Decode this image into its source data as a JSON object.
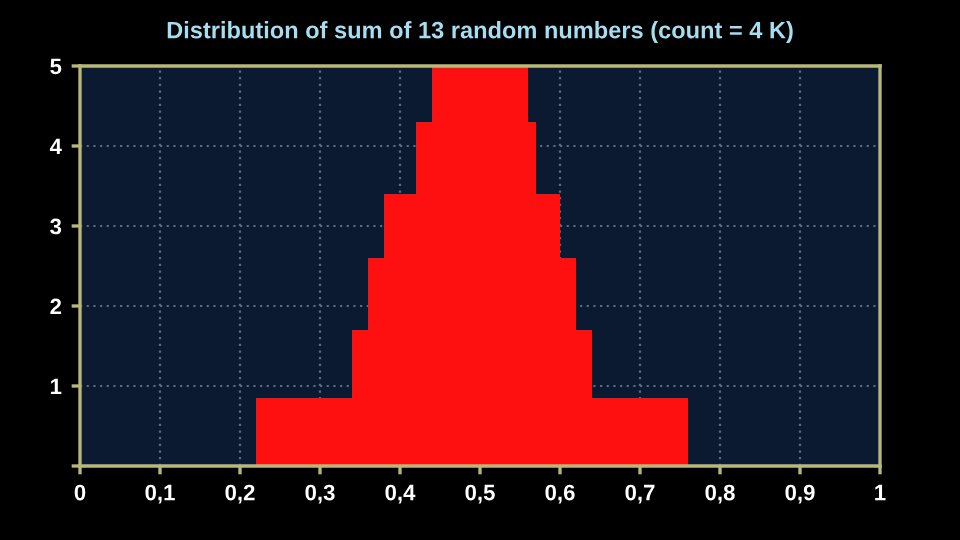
{
  "chart_data": {
    "type": "histogram",
    "title": "Distribution of sum of 13 random numbers (count = 4 K)",
    "bins": [
      0.22,
      0.23,
      0.24,
      0.25,
      0.26,
      0.27,
      0.28,
      0.29,
      0.3,
      0.31,
      0.32,
      0.33,
      0.34,
      0.35,
      0.36,
      0.37,
      0.38,
      0.39,
      0.4,
      0.41,
      0.42,
      0.43,
      0.44,
      0.45,
      0.46,
      0.47,
      0.48,
      0.49,
      0.5,
      0.51,
      0.52,
      0.53,
      0.54,
      0.55,
      0.56,
      0.57,
      0.58,
      0.59,
      0.6,
      0.61,
      0.62,
      0.63,
      0.64,
      0.65,
      0.66,
      0.67,
      0.68,
      0.69,
      0.7,
      0.71,
      0.72,
      0.73,
      0.74,
      0.75,
      0.76
    ],
    "values": [
      0.85,
      0.85,
      0.85,
      0.85,
      0.85,
      0.85,
      0.85,
      0.85,
      0.85,
      0.85,
      0.85,
      0.85,
      1.7,
      1.7,
      2.6,
      2.6,
      3.4,
      3.4,
      3.4,
      3.4,
      4.3,
      4.3,
      5,
      5,
      5,
      5,
      5,
      5,
      5,
      5,
      5,
      5,
      5,
      5,
      4.3,
      3.4,
      3.4,
      3.4,
      2.6,
      2.6,
      1.7,
      1.7,
      0.85,
      0.85,
      0.85,
      0.85,
      0.85,
      0.85,
      0.85,
      0.85,
      0.85,
      0.85,
      0.85,
      0.85
    ],
    "color": "#ff1010",
    "xlim": [
      0,
      1
    ],
    "ylim": [
      0,
      5
    ],
    "xticks": [
      0,
      {
        "value": 0.1,
        "label": "0,1"
      },
      {
        "value": 0.2,
        "label": "0,2"
      },
      {
        "value": 0.3,
        "label": "0,3"
      },
      {
        "value": 0.4,
        "label": "0,4"
      },
      {
        "value": 0.5,
        "label": "0,5"
      },
      {
        "value": 0.6,
        "label": "0,6"
      },
      {
        "value": 0.7,
        "label": "0,7"
      },
      {
        "value": 0.8,
        "label": "0,8"
      },
      {
        "value": 0.9,
        "label": "0,9"
      },
      1
    ],
    "yticks": [
      {
        "value": 0,
        "label": null
      },
      1,
      2,
      3,
      4,
      5
    ],
    "grid": true
  }
}
